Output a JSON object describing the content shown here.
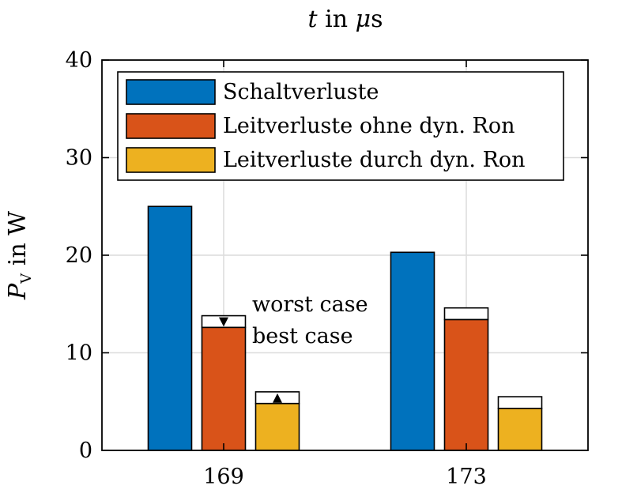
{
  "chart_data": {
    "type": "bar",
    "title": "t in μs",
    "ylabel": "P_V in W",
    "xlabel": "",
    "categories": [
      "169",
      "173"
    ],
    "ylim": [
      0,
      40
    ],
    "yticks": [
      0,
      10,
      20,
      30,
      40
    ],
    "grid": true,
    "legend_position": "top-left",
    "series": [
      {
        "name": "Schaltverluste",
        "color": "#0072BD",
        "values": [
          25.0,
          20.3
        ],
        "best_case": null
      },
      {
        "name": "Leitverluste ohne dyn. Ron",
        "color": "#D95319",
        "values": [
          13.8,
          14.6
        ],
        "best_case": [
          12.6,
          13.4
        ]
      },
      {
        "name": "Leitverluste durch dyn. Ron",
        "color": "#EDB120",
        "values": [
          6.0,
          5.5
        ],
        "best_case": [
          4.8,
          4.3
        ]
      }
    ],
    "annotations": [
      "worst case",
      "best case"
    ]
  }
}
